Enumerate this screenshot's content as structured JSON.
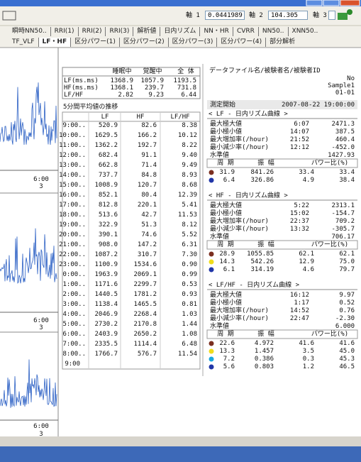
{
  "toolbar": {
    "axis1_label": "軸 1",
    "axis1_value": "0.0441989",
    "axis2_label": "軸 2",
    "axis2_value": "104.305",
    "axis3_label": "軸 3"
  },
  "tabs_row1": [
    "瞬時NN50..",
    "RRI(1)",
    "RRI(2)",
    "RRI(3)",
    "解析値",
    "日内リズム",
    "NN・HR",
    "CVRR",
    "NN50..",
    "XNN50.."
  ],
  "tabs_row2": [
    "TF_VLF",
    "LF・HF",
    "区分パワー(1)",
    "区分パワー(2)",
    "区分パワー(3)",
    "区分パワー(4)",
    "部分解析"
  ],
  "left_panel": {
    "charts": [
      {
        "time_label": "6:00",
        "sub_label": "3"
      },
      {
        "time_label": "6:00",
        "sub_label": "3"
      },
      {
        "time_label": "6:00",
        "sub_label": "3"
      }
    ]
  },
  "summary_table": {
    "header": [
      "睡眠中",
      "覚醒中",
      "全 体"
    ],
    "rows": [
      [
        "LF(ms.ms)",
        "1368.9",
        "1057.9",
        "1193.5"
      ],
      [
        "HF(ms.ms)",
        "1368.1",
        "239.7",
        "731.8"
      ],
      [
        "LF/HF",
        "2.82",
        "9.23",
        "6.44"
      ]
    ]
  },
  "trend": {
    "title": "5分間平均値の推移",
    "header": [
      "LF",
      "HF",
      "LF/HF"
    ],
    "rows": [
      [
        "9:00..",
        "520.9",
        "82.6",
        "8.38"
      ],
      [
        "10:00..",
        "1629.5",
        "166.2",
        "10.12"
      ],
      [
        "11:00..",
        "1362.2",
        "192.7",
        "8.22"
      ],
      [
        "12:00..",
        "682.4",
        "91.1",
        "9.40"
      ],
      [
        "13:00..",
        "662.8",
        "71.4",
        "9.49"
      ],
      [
        "14:00..",
        "737.7",
        "84.8",
        "8.93"
      ],
      [
        "15:00..",
        "1008.9",
        "120.7",
        "8.68"
      ],
      [
        "16:00..",
        "852.1",
        "80.4",
        "12.39"
      ],
      [
        "17:00..",
        "812.8",
        "220.1",
        "5.41"
      ],
      [
        "18:00..",
        "513.6",
        "42.7",
        "11.53"
      ],
      [
        "19:00..",
        "322.9",
        "51.3",
        "8.12"
      ],
      [
        "20:00..",
        "390.1",
        "74.6",
        "5.52"
      ],
      [
        "21:00..",
        "908.0",
        "147.2",
        "6.31"
      ],
      [
        "22:00..",
        "1087.2",
        "310.7",
        "7.30"
      ],
      [
        "23:00..",
        "1100.9",
        "1534.6",
        "0.90"
      ],
      [
        "0:00..",
        "1963.9",
        "2069.1",
        "0.99"
      ],
      [
        "1:00..",
        "1171.6",
        "2299.7",
        "0.53"
      ],
      [
        "2:00..",
        "1440.5",
        "1781.2",
        "0.93"
      ],
      [
        "3:00..",
        "1138.4",
        "1465.5",
        "0.81"
      ],
      [
        "4:00..",
        "2046.9",
        "2268.4",
        "1.03"
      ],
      [
        "5:00..",
        "2730.2",
        "2170.8",
        "1.44"
      ],
      [
        "6:00..",
        "2403.9",
        "2650.2",
        "1.08"
      ],
      [
        "7:00..",
        "2335.5",
        "1114.4",
        "6.48"
      ],
      [
        "8:00..",
        "1766.7",
        "576.7",
        "11.54"
      ]
    ],
    "end_label": "9:00"
  },
  "info": {
    "title": "データファイル名/被験者名/被験者ID",
    "lines": [
      "No",
      "Sample1",
      "01-01"
    ],
    "start_label": "測定開始",
    "start_value": "2007-08-22 19:00:00"
  },
  "rhythm_sections": [
    {
      "title": "< LF - 日内リズム曲線 >",
      "stats": [
        [
          "最大極大値",
          "6:07",
          "2471.3"
        ],
        [
          "最小極小値",
          "14:07",
          "387.5"
        ],
        [
          "最大増加率(/hour)",
          "21:52",
          "460.4"
        ],
        [
          "最小減少率(/hour)",
          "12:12",
          "-452.0"
        ]
      ],
      "level_label": "水準値",
      "level_value": "1427.93",
      "header": [
        "周 期",
        "振 幅",
        "パワー比(%)"
      ],
      "components": [
        {
          "color": "#7b2f20",
          "values": [
            "31.9",
            "841.26",
            "33.4",
            "33.4"
          ]
        },
        {
          "color": "#2036a8",
          "values": [
            "6.4",
            "326.86",
            "4.9",
            "38.4"
          ]
        }
      ]
    },
    {
      "title": "< HF - 日内リズム曲線 >",
      "stats": [
        [
          "最大極大値",
          "5:22",
          "2313.1"
        ],
        [
          "最小極小値",
          "15:02",
          "-154.7"
        ],
        [
          "最大増加率(/hour)",
          "22:37",
          "709.2"
        ],
        [
          "最小減少率(/hour)",
          "13:32",
          "-305.7"
        ]
      ],
      "level_label": "水準値",
      "level_value": "706.17",
      "header": [
        "周 期",
        "振 幅",
        "パワー比(%)"
      ],
      "components": [
        {
          "color": "#7b2f20",
          "values": [
            "28.9",
            "1055.85",
            "62.1",
            "62.1"
          ]
        },
        {
          "color": "#f0dc1c",
          "values": [
            "14.3",
            "542.26",
            "12.9",
            "75.0"
          ]
        },
        {
          "color": "#2036a8",
          "values": [
            "6.1",
            "314.19",
            "4.6",
            "79.7"
          ]
        }
      ]
    },
    {
      "title": "< LF/HF - 日内リズム曲線 >",
      "stats": [
        [
          "最大極大値",
          "16:12",
          "9.97"
        ],
        [
          "最小極小値",
          "1:17",
          "0.52"
        ],
        [
          "最大増加率(/hour)",
          "14:52",
          "0.76"
        ],
        [
          "最小減少率(/hour)",
          "22:47",
          "-2.30"
        ]
      ],
      "level_label": "水準値",
      "level_value": "6.000",
      "header": [
        "周 期",
        "振 幅",
        "パワー比(%)"
      ],
      "components": [
        {
          "color": "#7b2f20",
          "values": [
            "22.6",
            "4.972",
            "41.6",
            "41.6"
          ]
        },
        {
          "color": "#f0dc1c",
          "values": [
            "13.3",
            "1.457",
            "3.5",
            "45.0"
          ]
        },
        {
          "color": "#19a9e0",
          "values": [
            "7.2",
            "0.386",
            "0.3",
            "45.3"
          ]
        },
        {
          "color": "#2036a8",
          "values": [
            "5.6",
            "0.803",
            "1.2",
            "46.5"
          ]
        }
      ]
    }
  ]
}
